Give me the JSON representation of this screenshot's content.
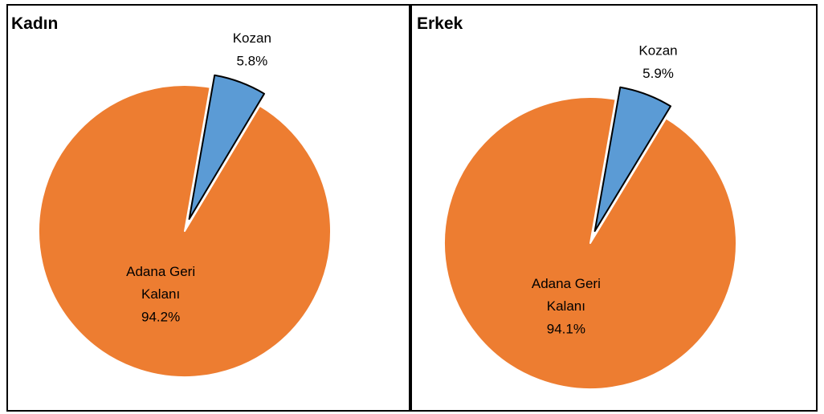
{
  "chart_data": [
    {
      "type": "pie",
      "title": "Kadın",
      "categories": [
        "Kozan",
        "Adana Geri Kalanı"
      ],
      "values": [
        5.8,
        94.2
      ],
      "value_labels": [
        "5.8%",
        "94.2%"
      ],
      "colors": [
        "#5b9bd5",
        "#ed7d31"
      ]
    },
    {
      "type": "pie",
      "title": "Erkek",
      "categories": [
        "Kozan",
        "Adana Geri Kalanı"
      ],
      "values": [
        5.9,
        94.1
      ],
      "value_labels": [
        "5.9%",
        "94.1%"
      ],
      "colors": [
        "#5b9bd5",
        "#ed7d31"
      ]
    }
  ]
}
